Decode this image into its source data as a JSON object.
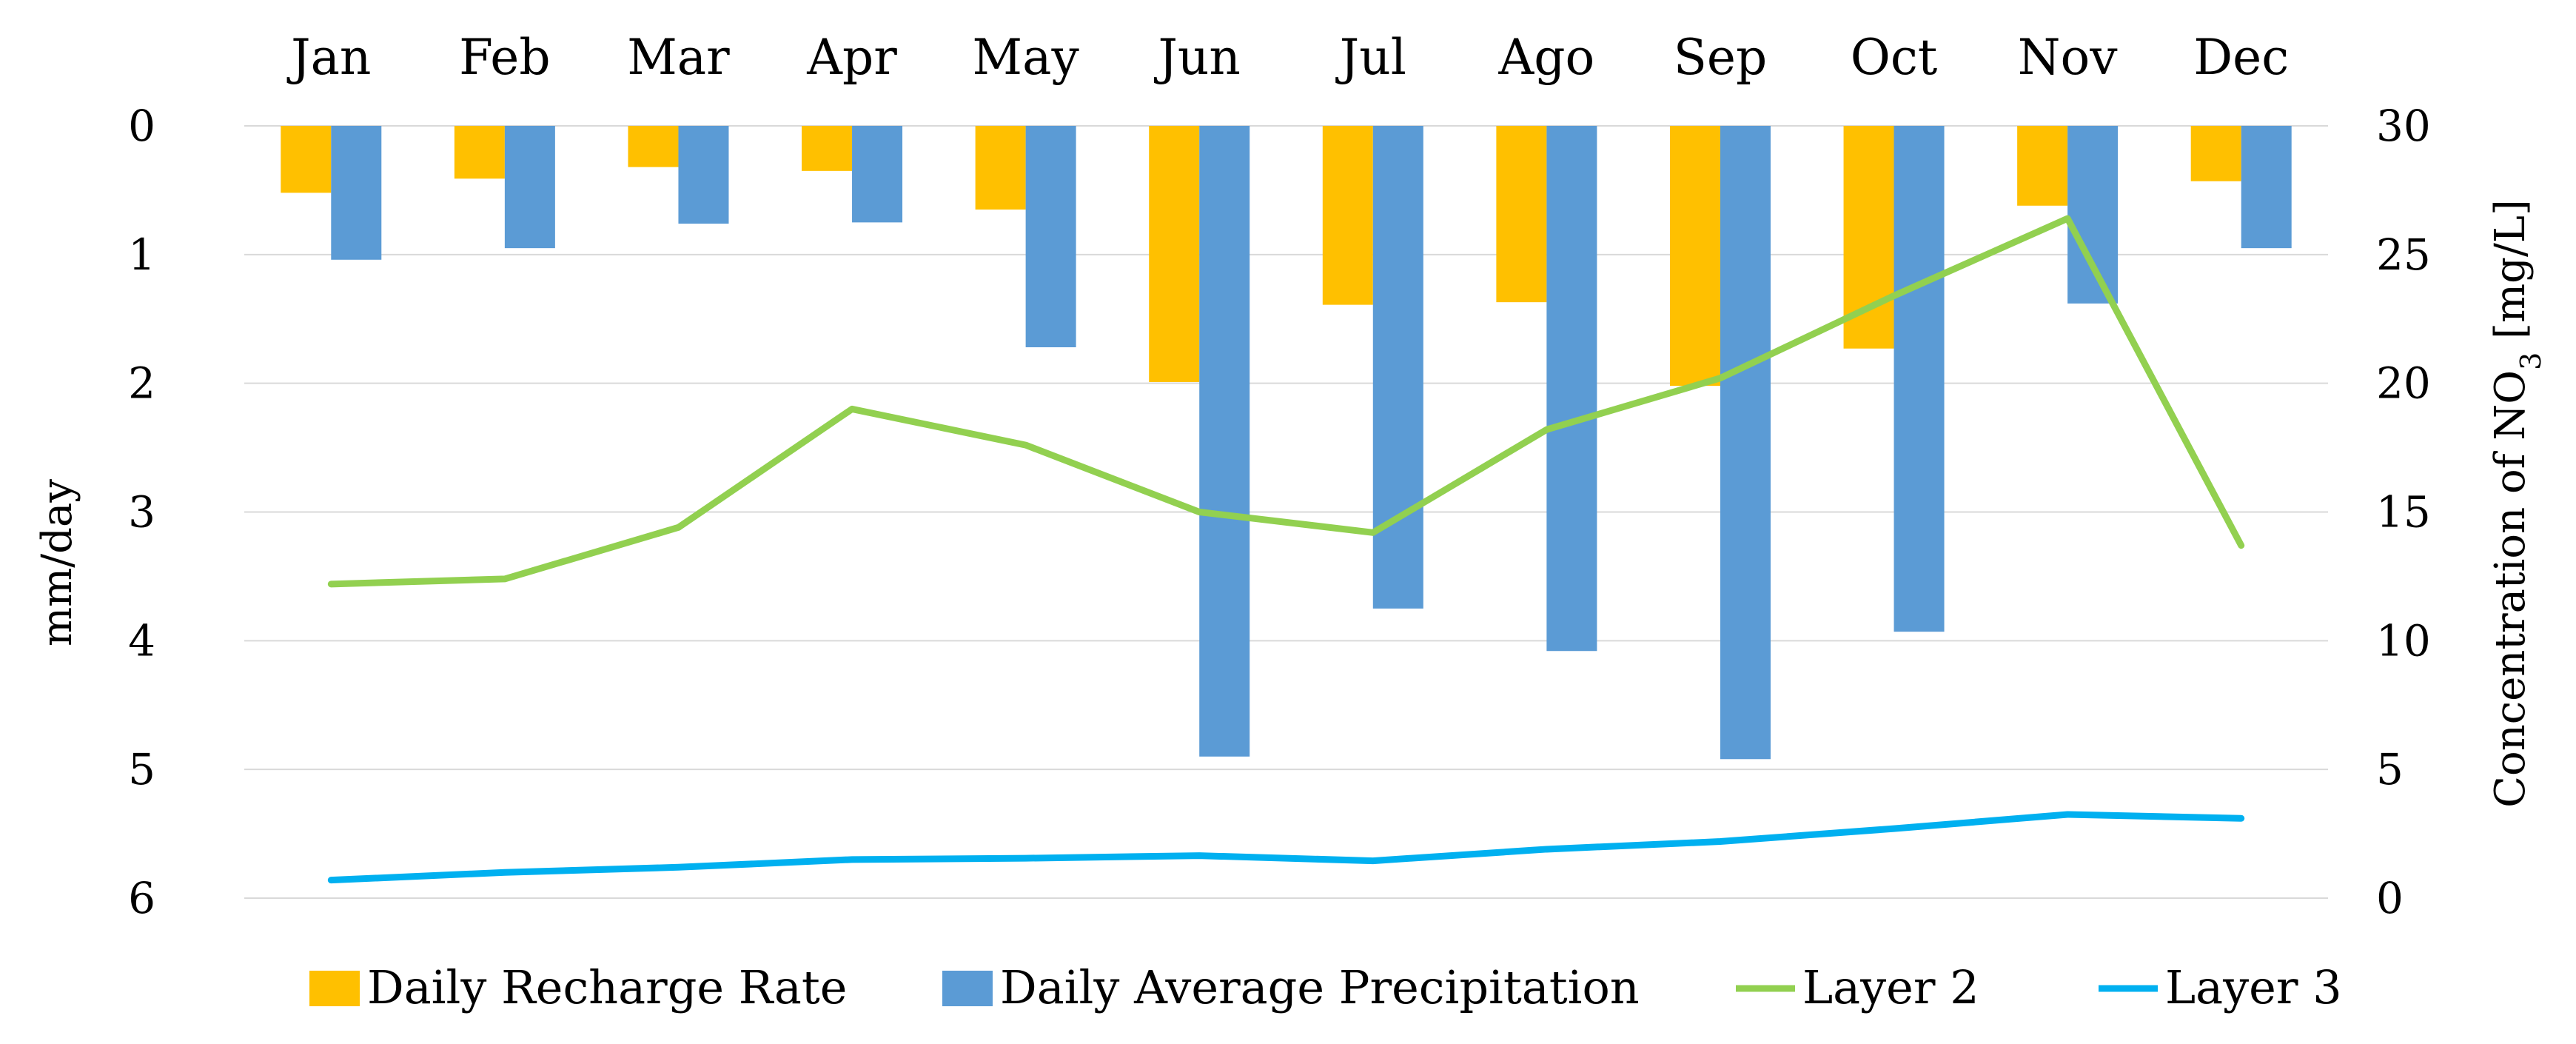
{
  "chart_data": {
    "type": "bar-line-combo",
    "categories": [
      "Jan",
      "Feb",
      "Mar",
      "Apr",
      "May",
      "Jun",
      "Jul",
      "Ago",
      "Sep",
      "Oct",
      "Nov",
      "Dec"
    ],
    "left_axis": {
      "label": "mm/day",
      "range": [
        0,
        6
      ],
      "reversed": true,
      "ticks": [
        "0",
        "1",
        "2",
        "3",
        "4",
        "5",
        "6"
      ],
      "tick_values": [
        0,
        1,
        2,
        3,
        4,
        5,
        6
      ]
    },
    "right_axis": {
      "label_main": "Concentration of NO",
      "label_sub": "3",
      "label_tail": " [mg/L]",
      "range": [
        0,
        30
      ],
      "ticks": [
        "0",
        "5",
        "10",
        "15",
        "20",
        "25",
        "30"
      ],
      "tick_values": [
        0,
        5,
        10,
        15,
        20,
        25,
        30
      ]
    },
    "grid": true,
    "series": [
      {
        "name": "Daily Recharge Rate",
        "kind": "bar",
        "axis": "left",
        "color": "#FFC000",
        "values": [
          0.52,
          0.41,
          0.32,
          0.35,
          0.65,
          1.99,
          1.39,
          1.37,
          2.02,
          1.73,
          0.62,
          0.43
        ]
      },
      {
        "name": "Daily Average Precipitation",
        "kind": "bar",
        "axis": "left",
        "color": "#5B9BD5",
        "values": [
          1.04,
          0.95,
          0.76,
          0.75,
          1.72,
          4.9,
          3.75,
          4.08,
          4.92,
          3.93,
          1.38,
          0.95
        ]
      },
      {
        "name": "Layer 2",
        "kind": "line",
        "axis": "right",
        "color": "#92D050",
        "values": [
          12.2,
          12.4,
          14.4,
          19.0,
          17.6,
          15.0,
          14.2,
          18.2,
          20.2,
          23.4,
          26.4,
          13.7
        ]
      },
      {
        "name": "Layer 3",
        "kind": "line",
        "axis": "right",
        "color": "#00B0F0",
        "values": [
          0.7,
          1.0,
          1.2,
          1.5,
          1.55,
          1.65,
          1.45,
          1.9,
          2.2,
          2.7,
          3.25,
          3.1
        ]
      }
    ],
    "legend_position": "bottom"
  }
}
